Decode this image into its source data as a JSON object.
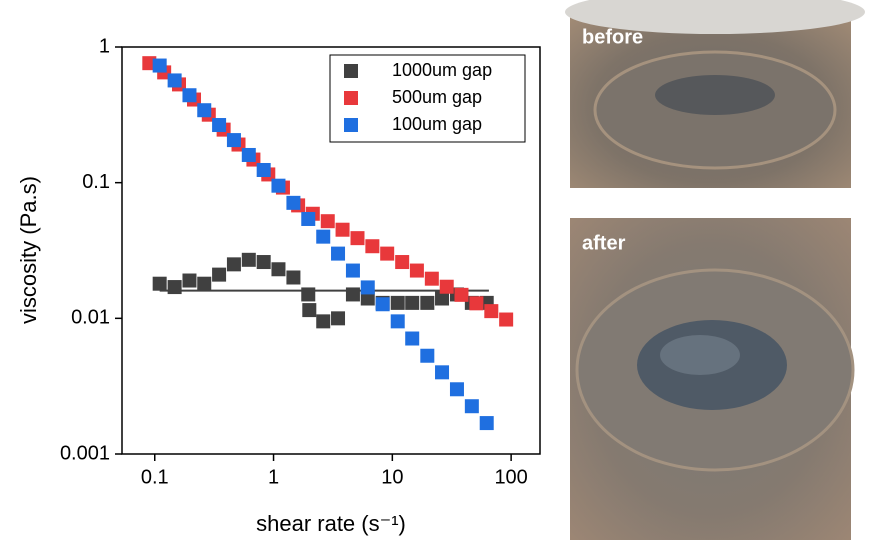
{
  "chart_data": {
    "type": "scatter",
    "xlabel": "shear rate (s⁻¹)",
    "ylabel": "viscosity (Pa.s)",
    "xscale": "log",
    "yscale": "log",
    "xlim": [
      0.053,
      175
    ],
    "ylim": [
      0.001,
      1
    ],
    "xticks": [
      0.1,
      1,
      10,
      100
    ],
    "yticks": [
      0.001,
      0.01,
      0.1,
      1
    ],
    "legend": "upper right",
    "series": [
      {
        "name": "1000um gap",
        "color": "#404040",
        "x": [
          0.11,
          0.147,
          0.196,
          0.261,
          0.348,
          0.464,
          0.619,
          0.826,
          1.1,
          1.47,
          1.96,
          2.0,
          2.62,
          3.49,
          4.66,
          6.21,
          8.29,
          11.1,
          14.7,
          19.7,
          26.2,
          35,
          46.7,
          62.3
        ],
        "values": [
          0.018,
          0.017,
          0.019,
          0.018,
          0.021,
          0.025,
          0.027,
          0.026,
          0.023,
          0.02,
          0.015,
          0.0115,
          0.0095,
          0.01,
          0.015,
          0.014,
          0.013,
          0.013,
          0.013,
          0.013,
          0.014,
          0.015,
          0.013,
          0.013
        ]
      },
      {
        "name": "500um gap",
        "color": "#e8383b",
        "x": [
          0.09,
          0.12,
          0.16,
          0.214,
          0.285,
          0.38,
          0.507,
          0.677,
          0.903,
          1.2,
          1.61,
          2.14,
          2.86,
          3.81,
          5.09,
          6.79,
          9.05,
          12.1,
          16.1,
          21.5,
          28.7,
          38.2,
          51,
          68.1,
          90.8
        ],
        "values": [
          0.76,
          0.65,
          0.53,
          0.41,
          0.317,
          0.246,
          0.191,
          0.148,
          0.115,
          0.092,
          0.068,
          0.059,
          0.052,
          0.045,
          0.039,
          0.034,
          0.03,
          0.026,
          0.0225,
          0.0196,
          0.0171,
          0.0149,
          0.0129,
          0.0113,
          0.0098
        ]
      },
      {
        "name": "100um gap",
        "color": "#1f6fe0",
        "x": [
          0.11,
          0.147,
          0.196,
          0.261,
          0.348,
          0.464,
          0.619,
          0.826,
          1.1,
          1.47,
          1.96,
          2.62,
          3.49,
          4.66,
          6.21,
          8.29,
          11.1,
          14.7,
          19.7,
          26.2,
          35,
          46.7,
          62.3
        ],
        "values": [
          0.73,
          0.567,
          0.441,
          0.342,
          0.266,
          0.206,
          0.16,
          0.124,
          0.095,
          0.071,
          0.054,
          0.04,
          0.03,
          0.0225,
          0.0169,
          0.0127,
          0.0095,
          0.0071,
          0.0053,
          0.004,
          0.003,
          0.00225,
          0.00169
        ]
      }
    ],
    "reference_line": {
      "color": "#404040",
      "x": [
        0.11,
        65
      ],
      "values": [
        0.016,
        0.016
      ]
    }
  },
  "photos": [
    {
      "label": "before"
    },
    {
      "label": "after"
    }
  ]
}
